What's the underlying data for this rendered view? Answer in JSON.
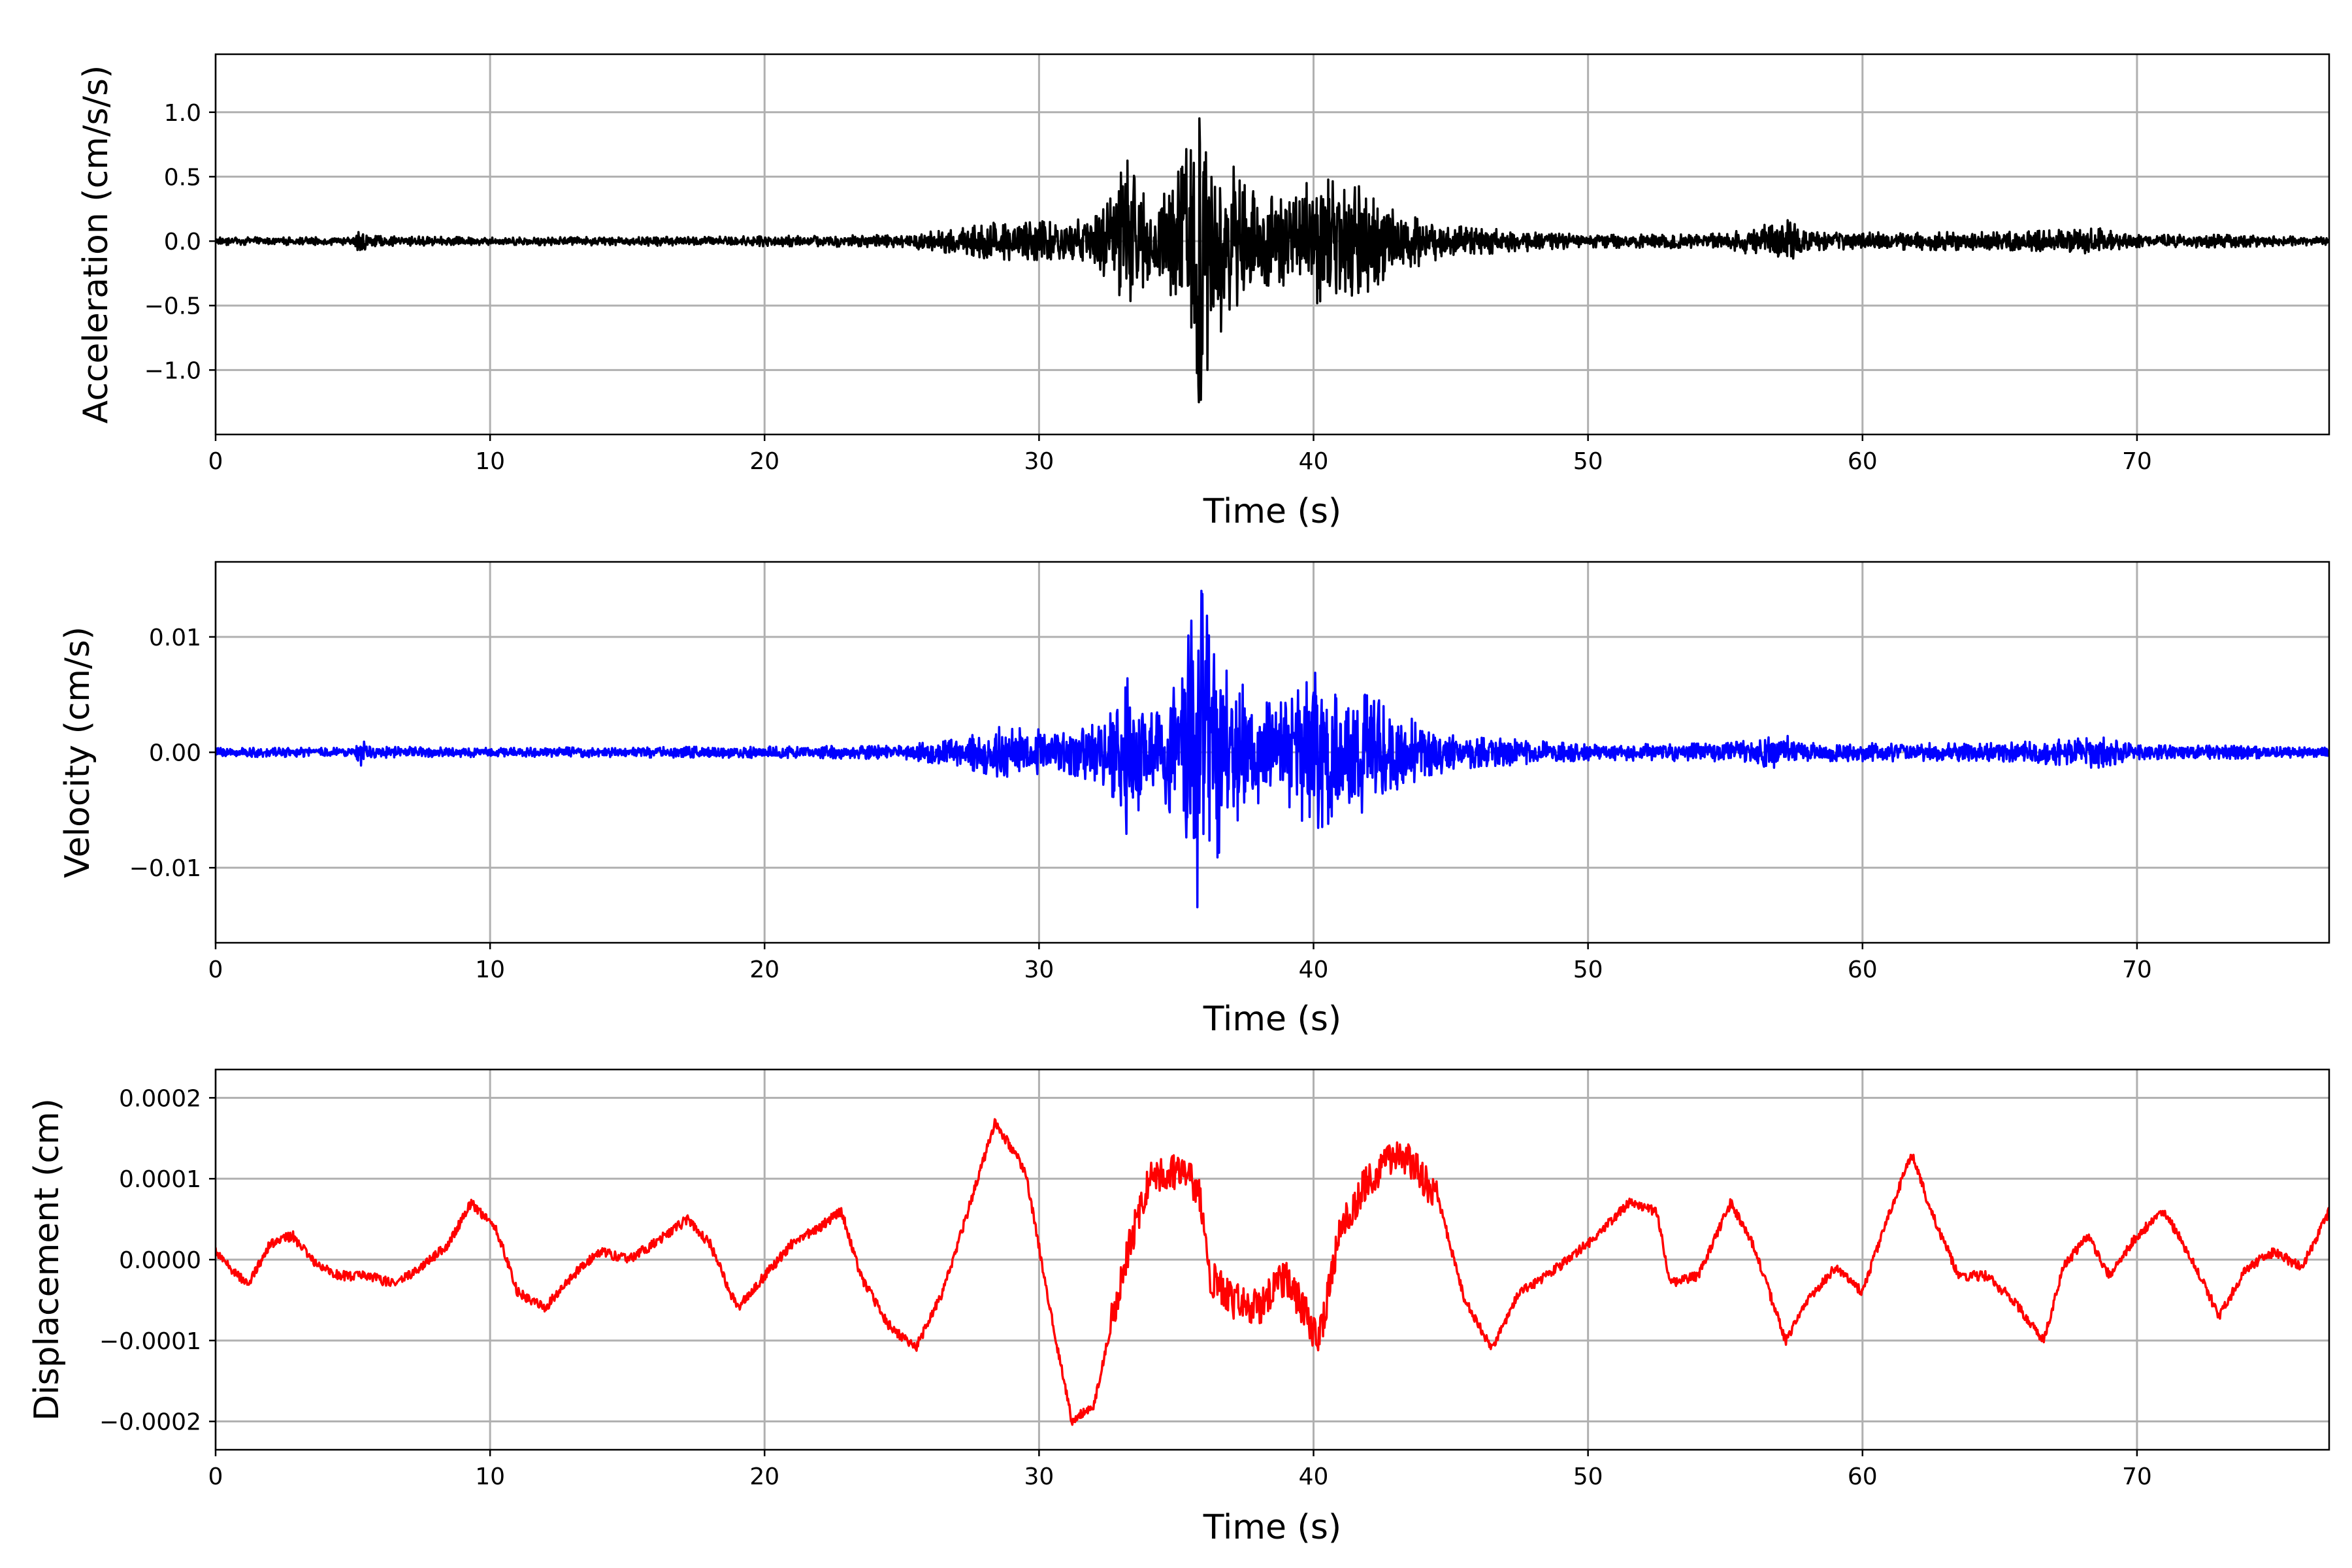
{
  "chart_data": [
    {
      "type": "line",
      "xlabel": "Time (s)",
      "ylabel": "Acceleration (cm/s/s)",
      "xlim": [
        0,
        77
      ],
      "ylim": [
        -1.5,
        1.45
      ],
      "xticks": [
        0,
        10,
        20,
        30,
        40,
        50,
        60,
        70
      ],
      "xtick_labels": [
        "0",
        "10",
        "20",
        "30",
        "40",
        "50",
        "60",
        "70"
      ],
      "yticks": [
        -1.0,
        -0.5,
        0.0,
        0.5,
        1.0
      ],
      "ytick_labels": [
        "−1.0",
        "−0.5",
        "0.0",
        "0.5",
        "1.0"
      ],
      "grid": true,
      "color": "#000000",
      "envelope": {
        "t": [
          0,
          5,
          5.3,
          5.6,
          10,
          20,
          25,
          27,
          28.5,
          30,
          31,
          32.5,
          33.2,
          34,
          35,
          35.9,
          36.3,
          37,
          38,
          39,
          40.2,
          41,
          41.8,
          43,
          45,
          47,
          50,
          55,
          57.2,
          58,
          60,
          65,
          68.7,
          70,
          73,
          77
        ],
        "amplitude": [
          0.03,
          0.03,
          0.11,
          0.04,
          0.03,
          0.04,
          0.05,
          0.1,
          0.15,
          0.16,
          0.14,
          0.3,
          0.65,
          0.3,
          0.5,
          1.33,
          0.9,
          0.65,
          0.35,
          0.35,
          0.58,
          0.4,
          0.45,
          0.25,
          0.12,
          0.09,
          0.05,
          0.06,
          0.18,
          0.07,
          0.07,
          0.07,
          0.1,
          0.05,
          0.05,
          0.03
        ]
      }
    },
    {
      "type": "line",
      "xlabel": "Time (s)",
      "ylabel": "Velocity (cm/s)",
      "xlim": [
        0,
        77
      ],
      "ylim": [
        -0.0165,
        0.0165
      ],
      "xticks": [
        0,
        10,
        20,
        30,
        40,
        50,
        60,
        70
      ],
      "xtick_labels": [
        "0",
        "10",
        "20",
        "30",
        "40",
        "50",
        "60",
        "70"
      ],
      "yticks": [
        -0.01,
        0.0,
        0.01
      ],
      "ytick_labels": [
        "−0.01",
        "0.00",
        "0.01"
      ],
      "grid": true,
      "color": "#0000ff",
      "envelope": {
        "t": [
          0,
          5,
          5.3,
          5.6,
          10,
          20,
          25,
          27,
          28.5,
          30,
          31,
          32.5,
          33.2,
          34,
          35,
          35.9,
          36.3,
          37,
          38,
          39,
          40.2,
          41,
          41.8,
          43,
          45,
          47,
          50,
          55,
          57.2,
          58,
          60,
          65,
          68.7,
          70,
          73,
          77
        ],
        "amplitude": [
          0.0004,
          0.0004,
          0.0012,
          0.0005,
          0.0004,
          0.0005,
          0.0006,
          0.0012,
          0.0022,
          0.002,
          0.0018,
          0.003,
          0.0072,
          0.0035,
          0.006,
          0.015,
          0.011,
          0.007,
          0.0045,
          0.0045,
          0.0075,
          0.0045,
          0.0055,
          0.0035,
          0.0015,
          0.0012,
          0.0007,
          0.0008,
          0.0015,
          0.0008,
          0.0008,
          0.0008,
          0.0014,
          0.0006,
          0.0006,
          0.0004
        ]
      }
    },
    {
      "type": "line",
      "xlabel": "Time (s)",
      "ylabel": "Displacement (cm)",
      "xlim": [
        0,
        77
      ],
      "ylim": [
        -0.000235,
        0.000235
      ],
      "xticks": [
        0,
        10,
        20,
        30,
        40,
        50,
        60,
        70
      ],
      "xtick_labels": [
        "0",
        "10",
        "20",
        "30",
        "40",
        "50",
        "60",
        "70"
      ],
      "yticks": [
        -0.0002,
        -0.0001,
        0.0,
        0.0001,
        0.0002
      ],
      "ytick_labels": [
        "−0.0002",
        "−0.0001",
        "0.0000",
        "0.0001",
        "0.0002"
      ],
      "grid": true,
      "color": "#ff0000",
      "x": [
        0,
        0.5,
        1.2,
        2,
        2.8,
        3.5,
        4.5,
        5.5,
        6.5,
        7.5,
        8.5,
        9.3,
        10.2,
        11,
        12,
        13,
        14,
        15,
        16,
        17.2,
        18,
        19,
        20,
        21,
        22,
        22.8,
        23.5,
        24.5,
        25.5,
        26.5,
        27.5,
        28.4,
        29.5,
        30.5,
        31.2,
        32,
        33,
        34,
        35,
        35.8,
        36.2,
        37,
        38,
        39,
        40.2,
        41,
        42,
        43,
        43.5,
        44.5,
        45.5,
        46.5,
        47.5,
        48.5,
        50,
        51.5,
        52.5,
        53,
        54,
        55.2,
        56,
        57.2,
        58,
        59,
        60,
        61,
        61.8,
        62.5,
        63.5,
        64.5,
        65.5,
        66.6,
        67.3,
        68.2,
        69,
        70,
        71,
        72,
        73,
        74,
        75,
        76,
        77
      ],
      "y": [
        1e-05,
        -1e-05,
        -3e-05,
        2e-05,
        3e-05,
        0.0,
        -2e-05,
        -2e-05,
        -3e-05,
        -1e-05,
        2e-05,
        7e-05,
        4e-05,
        -4e-05,
        -6e-05,
        -2e-05,
        1e-05,
        0.0,
        2e-05,
        5e-05,
        2e-05,
        -6e-05,
        -2e-05,
        2e-05,
        4e-05,
        6e-05,
        -2e-05,
        -8e-05,
        -0.00011,
        -4e-05,
        7e-05,
        0.00017,
        0.00011,
        -8e-05,
        -0.0002,
        -0.00018,
        -2e-05,
        0.0001,
        0.00011,
        9e-05,
        -2e-05,
        -5e-05,
        -6e-05,
        -2e-05,
        -0.0001,
        4e-05,
        0.0001,
        0.00013,
        0.00012,
        8e-05,
        -5e-05,
        -0.00011,
        -4e-05,
        -2e-05,
        2e-05,
        7e-05,
        6e-05,
        -3e-05,
        -2e-05,
        7e-05,
        2e-05,
        -0.0001,
        -5e-05,
        -1e-05,
        -4e-05,
        6e-05,
        0.00013,
        6e-05,
        -2e-05,
        -2e-05,
        -5e-05,
        -0.0001,
        -1e-05,
        3e-05,
        -2e-05,
        3e-05,
        6e-05,
        0.0,
        -7e-05,
        -1e-05,
        1e-05,
        -1e-05,
        6e-05
      ]
    }
  ]
}
